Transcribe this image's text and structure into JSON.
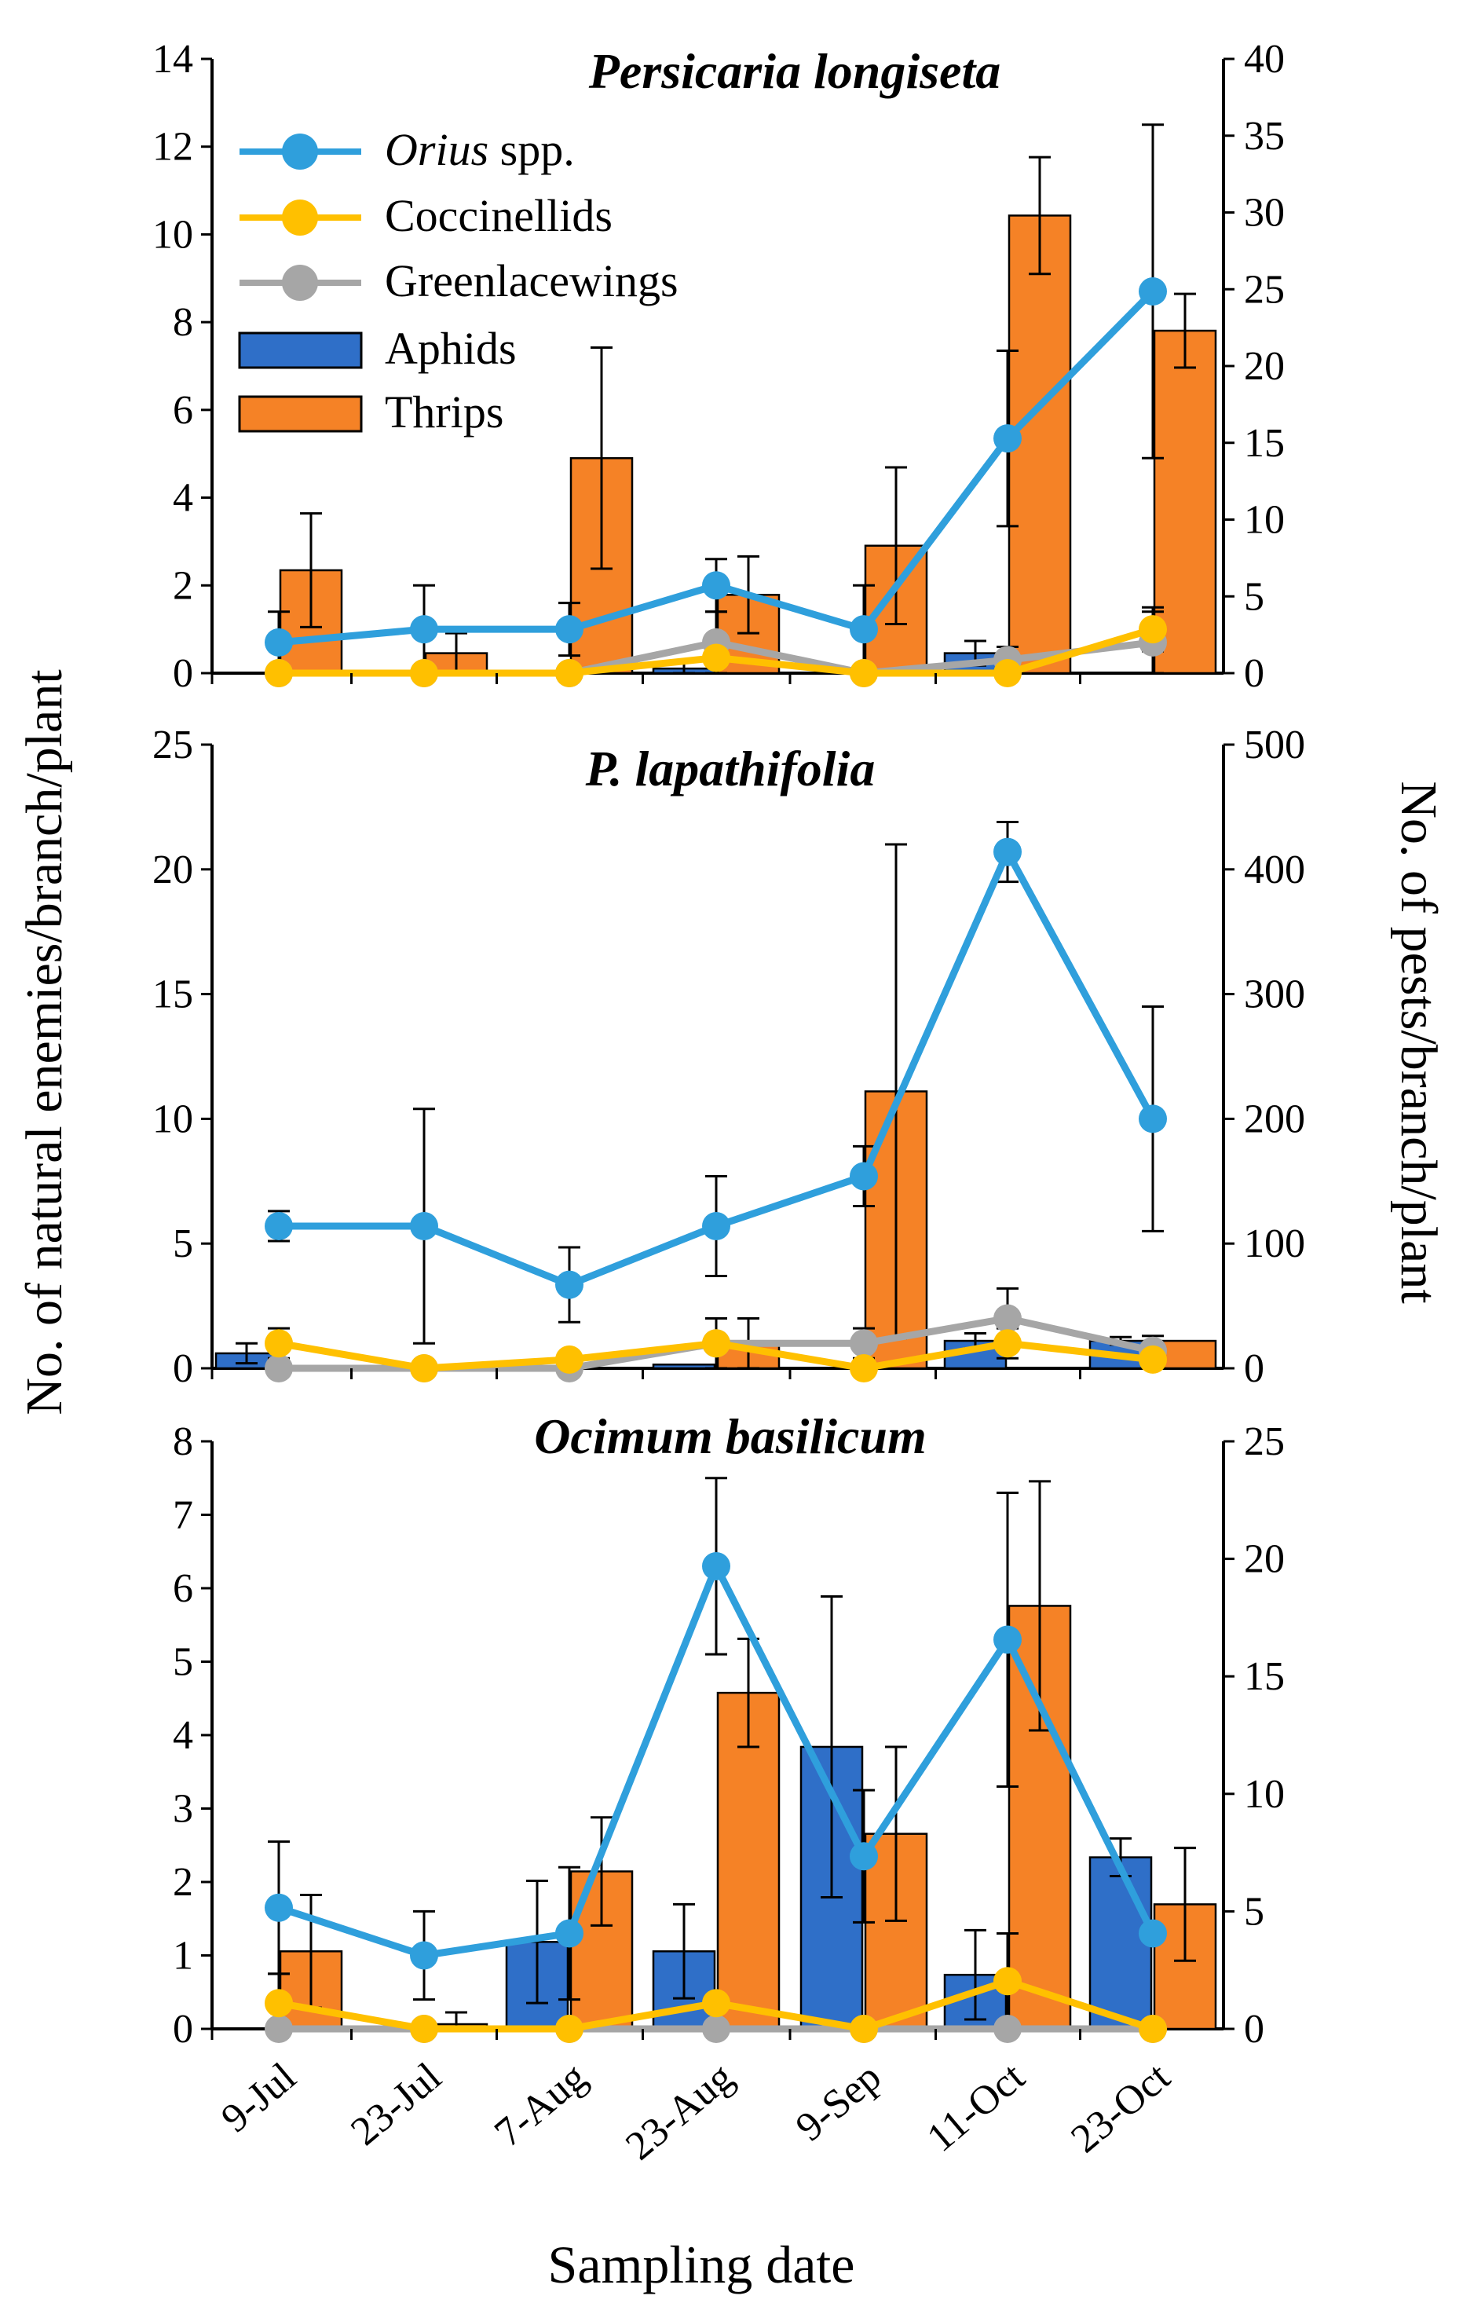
{
  "figure": {
    "y_label_left": "No. of natural enemies/branch/plant",
    "y_label_right": "No. of pests/branch/plant",
    "x_label": "Sampling date",
    "dates": [
      "9-Jul",
      "23-Jul",
      "7-Aug",
      "23-Aug",
      "9-Sep",
      "11-Oct",
      "23-Oct"
    ]
  },
  "legend": {
    "orius": {
      "italic": "Orius",
      "rest": " spp."
    },
    "coccinellids": "Coccinellids",
    "lacewings": "Greenlacewings",
    "aphids": "Aphids",
    "thrips": "Thrips"
  },
  "colors": {
    "orius": "#2f9fdc",
    "coccinellids": "#ffc000",
    "lacewings": "#a6a6a6",
    "aphids": "#2f6fc8",
    "thrips": "#f58226"
  },
  "chart_data": [
    {
      "type": "bar",
      "title": "Persicaria longiseta",
      "categories": [
        "9-Jul",
        "23-Jul",
        "7-Aug",
        "23-Aug",
        "9-Sep",
        "11-Oct",
        "23-Oct"
      ],
      "ylim_left": [
        0,
        14
      ],
      "yticks_left": [
        0,
        2,
        4,
        6,
        8,
        10,
        12,
        14
      ],
      "ylim_right": [
        0,
        40
      ],
      "yticks_right": [
        0,
        5,
        10,
        15,
        20,
        25,
        30,
        35,
        40
      ],
      "bar_series": [
        {
          "name": "Aphids",
          "axis": "right",
          "values": [
            0,
            0,
            0,
            0.3,
            0,
            1.3,
            0
          ],
          "err": [
            0,
            0,
            0,
            0.5,
            0,
            0.8,
            0
          ]
        },
        {
          "name": "Thrips",
          "axis": "right",
          "values": [
            6.7,
            1.3,
            14.0,
            5.1,
            8.3,
            29.8,
            22.3
          ],
          "err": [
            3.7,
            1.3,
            7.2,
            2.5,
            5.1,
            3.8,
            2.4
          ]
        }
      ],
      "line_series": [
        {
          "name": "Orius spp.",
          "axis": "left",
          "values": [
            0.7,
            1.0,
            1.0,
            2.0,
            1.0,
            5.35,
            8.7
          ],
          "err": [
            0.7,
            1.0,
            0.6,
            0.6,
            1.0,
            2.0,
            3.8
          ]
        },
        {
          "name": "Coccinellids",
          "axis": "left",
          "values": [
            0,
            0,
            0,
            0.35,
            0,
            0,
            1.0
          ],
          "err": [
            0,
            0,
            0,
            0,
            0,
            0,
            0.5
          ]
        },
        {
          "name": "Greenlacewings",
          "axis": "left",
          "values": [
            0,
            0,
            0,
            0.7,
            0,
            0.3,
            0.7
          ],
          "err": [
            0,
            0,
            0,
            0.7,
            0,
            0.3,
            0.7
          ]
        }
      ]
    },
    {
      "type": "bar",
      "title": "P. lapathifolia",
      "categories": [
        "9-Jul",
        "23-Jul",
        "7-Aug",
        "23-Aug",
        "9-Sep",
        "11-Oct",
        "23-Oct"
      ],
      "ylim_left": [
        0,
        25
      ],
      "yticks_left": [
        0,
        5,
        10,
        15,
        20,
        25
      ],
      "ylim_right": [
        0,
        500
      ],
      "yticks_right": [
        0,
        100,
        200,
        300,
        400,
        500
      ],
      "bar_series": [
        {
          "name": "Aphids",
          "axis": "right",
          "values": [
            12,
            0.5,
            2,
            3,
            0,
            22,
            22
          ],
          "err": [
            8,
            0,
            3,
            0,
            0,
            6,
            3
          ]
        },
        {
          "name": "Thrips",
          "axis": "right",
          "values": [
            0,
            0,
            0,
            20,
            222,
            0,
            22
          ],
          "err": [
            0,
            0,
            0,
            20,
            198,
            0,
            0
          ]
        }
      ],
      "line_series": [
        {
          "name": "Orius spp.",
          "axis": "left",
          "values": [
            5.7,
            5.7,
            3.35,
            5.7,
            7.7,
            20.7,
            10.0
          ],
          "err": [
            0.6,
            4.7,
            1.5,
            2.0,
            1.2,
            1.2,
            4.5
          ]
        },
        {
          "name": "Coccinellids",
          "axis": "left",
          "values": [
            1.0,
            0,
            0.35,
            1.0,
            0,
            1.0,
            0.35
          ],
          "err": [
            0.6,
            0,
            0,
            1.0,
            0,
            0.6,
            0
          ]
        },
        {
          "name": "Greenlacewings",
          "axis": "left",
          "values": [
            0,
            0,
            0,
            1.0,
            1.0,
            2.0,
            0.7
          ],
          "err": [
            0,
            0,
            0,
            1.0,
            0.6,
            1.2,
            0.6
          ]
        }
      ]
    },
    {
      "type": "bar",
      "title": "Ocimum basilicum",
      "categories": [
        "9-Jul",
        "23-Jul",
        "7-Aug",
        "23-Aug",
        "9-Sep",
        "11-Oct",
        "23-Oct"
      ],
      "ylim_left": [
        0,
        8
      ],
      "yticks_left": [
        0,
        1,
        2,
        3,
        4,
        5,
        6,
        7,
        8
      ],
      "ylim_right": [
        0,
        25
      ],
      "yticks_right": [
        0,
        5,
        10,
        15,
        20,
        25
      ],
      "bar_series": [
        {
          "name": "Aphids",
          "axis": "right",
          "values": [
            0,
            0,
            3.7,
            3.3,
            12.0,
            2.3,
            7.3
          ],
          "err": [
            0,
            0,
            2.6,
            2.0,
            6.4,
            1.9,
            0.8
          ]
        },
        {
          "name": "Thrips",
          "axis": "right",
          "values": [
            3.3,
            0.2,
            6.7,
            14.3,
            8.3,
            18.0,
            5.3
          ],
          "err": [
            2.4,
            0.5,
            2.3,
            2.3,
            3.7,
            5.3,
            2.4
          ]
        }
      ],
      "line_series": [
        {
          "name": "Orius spp.",
          "axis": "left",
          "values": [
            1.65,
            1.0,
            1.3,
            6.3,
            2.35,
            5.3,
            1.3
          ],
          "err": [
            0.9,
            0.6,
            0.9,
            1.2,
            0.9,
            2.0,
            0
          ]
        },
        {
          "name": "Coccinellids",
          "axis": "left",
          "values": [
            0.35,
            0,
            0,
            0.35,
            0,
            0.65,
            0
          ],
          "err": [
            0.4,
            0,
            0,
            0,
            0,
            0.65,
            0
          ]
        },
        {
          "name": "Greenlacewings",
          "axis": "left",
          "values": [
            0,
            0,
            0,
            0,
            0,
            0,
            0
          ],
          "err": [
            0,
            0,
            0,
            0,
            0,
            0,
            0
          ]
        }
      ]
    }
  ]
}
